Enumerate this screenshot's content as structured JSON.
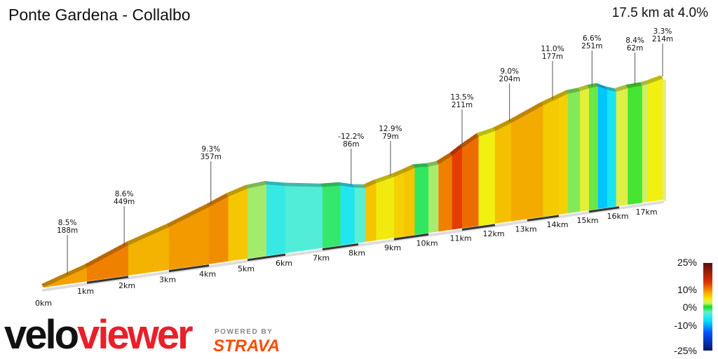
{
  "header": {
    "title": "Ponte Gardena - Collalbo",
    "summary": "17.5 km at 4.0%"
  },
  "chart_data": {
    "type": "area",
    "xlabel": "",
    "ylabel": "",
    "x_unit": "km",
    "x_ticks": [
      "0km",
      "1km",
      "2km",
      "3km",
      "4km",
      "5km",
      "6km",
      "7km",
      "8km",
      "9km",
      "10km",
      "11km",
      "12km",
      "13km",
      "14km",
      "15km",
      "16km",
      "17km"
    ],
    "profile": [
      [
        0,
        0
      ],
      [
        1,
        84
      ],
      [
        2,
        184
      ],
      [
        3,
        260
      ],
      [
        4,
        348
      ],
      [
        4.5,
        395
      ],
      [
        5,
        428
      ],
      [
        5.5,
        436
      ],
      [
        6,
        410
      ],
      [
        7,
        372
      ],
      [
        7.5,
        365
      ],
      [
        7.9,
        340
      ],
      [
        8.2,
        330
      ],
      [
        8.5,
        350
      ],
      [
        9,
        372
      ],
      [
        9.3,
        390
      ],
      [
        9.6,
        410
      ],
      [
        10,
        405
      ],
      [
        10.3,
        410
      ],
      [
        10.7,
        450
      ],
      [
        11,
        490
      ],
      [
        11.5,
        545
      ],
      [
        12,
        565
      ],
      [
        12.5,
        600
      ],
      [
        13,
        640
      ],
      [
        13.5,
        680
      ],
      [
        14,
        712
      ],
      [
        14.3,
        730
      ],
      [
        14.7,
        735
      ],
      [
        15,
        745
      ],
      [
        15.3,
        748
      ],
      [
        15.6,
        720
      ],
      [
        15.9,
        700
      ],
      [
        16.3,
        712
      ],
      [
        16.8,
        715
      ],
      [
        17,
        720
      ],
      [
        17.5,
        740
      ]
    ],
    "annotations": [
      {
        "km": 0.55,
        "grade": "8.5%",
        "length": "188m"
      },
      {
        "km": 1.9,
        "grade": "8.6%",
        "length": "449m"
      },
      {
        "km": 4.05,
        "grade": "9.3%",
        "length": "357m"
      },
      {
        "km": 7.8,
        "grade": "-12.2%",
        "length": "86m"
      },
      {
        "km": 8.9,
        "grade": "12.9%",
        "length": "79m"
      },
      {
        "km": 11.0,
        "grade": "13.5%",
        "length": "211m"
      },
      {
        "km": 12.45,
        "grade": "9.0%",
        "length": "204m"
      },
      {
        "km": 13.8,
        "grade": "11.0%",
        "length": "177m"
      },
      {
        "km": 15.1,
        "grade": "6.6%",
        "length": "251m"
      },
      {
        "km": 16.55,
        "grade": "8.4%",
        "length": "62m"
      },
      {
        "km": 17.5,
        "grade": "3.3%",
        "length": "214m"
      }
    ],
    "legend": {
      "labels": [
        "25%",
        "10%",
        "0%",
        "-10%",
        "-25%"
      ],
      "colors": {
        "25": "#5a0f0f",
        "14": "#e03000",
        "10": "#f08000",
        "7": "#f5c000",
        "4": "#f2f010",
        "2": "#c8ee80",
        "0": "#10e010",
        "-3": "#60f0d0",
        "-8": "#00e0ff",
        "-15": "#0050ff",
        "-25": "#0a1a6a"
      }
    }
  },
  "branding": {
    "logo_a": "velo",
    "logo_b": "viewer",
    "powered": "POWERED BY",
    "strava": "STRAVA"
  }
}
